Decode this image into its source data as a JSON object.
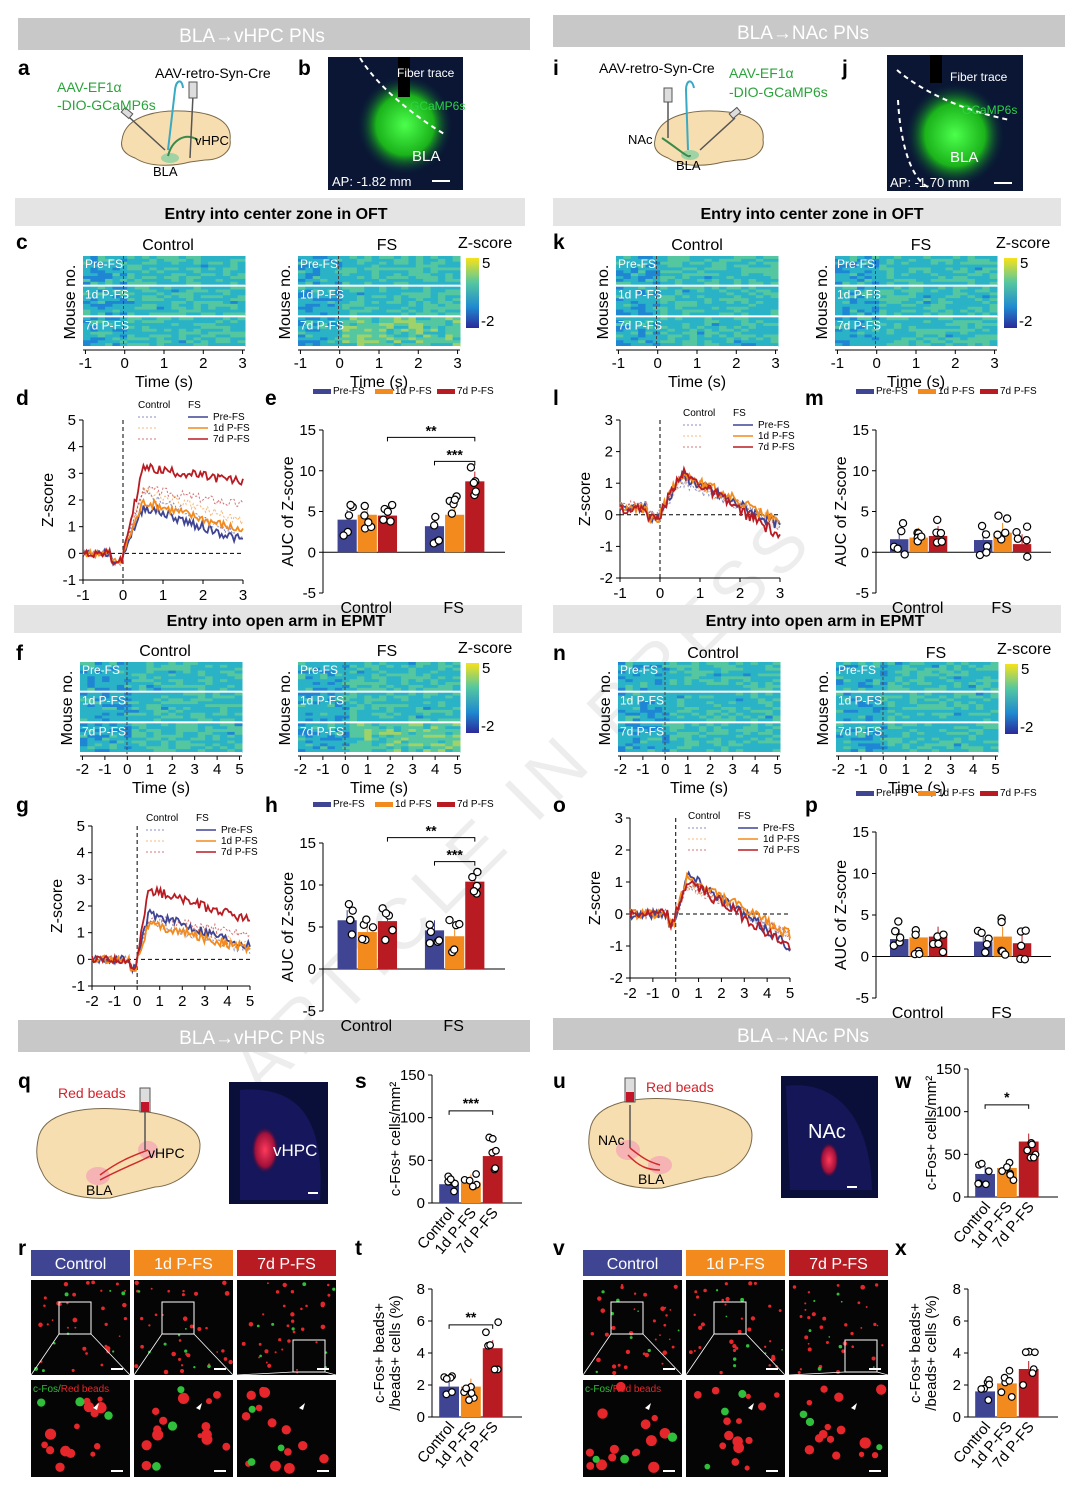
{
  "colors": {
    "pre": "#3f4493",
    "d1": "#f28a1e",
    "d7": "#b81c22",
    "bar_gray": "#cfcfcf",
    "green": "#2fbf3a",
    "red": "#e5262a"
  },
  "sections": {
    "top_left": "BLA→vHPC PNs",
    "top_right": "BLA→NAc PNs",
    "bottom_left": "BLA→vHPC PNs",
    "bottom_right": "BLA→NAc PNs"
  },
  "subsections": {
    "oft_left": "Entry into center zone in OFT",
    "oft_right": "Entry into center zone in OFT",
    "epmt_left": "Entry into open arm in EPMT",
    "epmt_right": "Entry into open arm in EPMT"
  },
  "panel_letters": [
    "a",
    "b",
    "c",
    "d",
    "e",
    "f",
    "g",
    "h",
    "i",
    "j",
    "k",
    "l",
    "m",
    "n",
    "o",
    "p",
    "q",
    "r",
    "s",
    "t",
    "u",
    "v",
    "w",
    "x"
  ],
  "schematic": {
    "a": {
      "virus1": "AAV-EF1α",
      "virus2": "-DIO-GCaMP6s",
      "virus3": "AAV-retro-Syn-Cre",
      "target": "vHPC",
      "source": "BLA"
    },
    "i": {
      "virus1": "AAV-EF1α",
      "virus2": "-DIO-GCaMP6s",
      "virus3": "AAV-retro-Syn-Cre",
      "target": "NAc",
      "source": "BLA"
    }
  },
  "histology": {
    "b": {
      "fiber": "Fiber trace",
      "label1": "GCaMP6s",
      "label2": "BLA",
      "ap": "AP: -1.82 mm"
    },
    "j": {
      "fiber": "Fiber trace",
      "label1": "GCaMP6s",
      "label2": "BLA",
      "ap": "AP: -1.70 mm"
    },
    "q": {
      "label": "vHPC"
    },
    "u": {
      "label": "NAc"
    }
  },
  "heatmap": {
    "ylabel": "Mouse no.",
    "xlabel": "Time (s)",
    "zlabel": "Z-score",
    "zmax": "5",
    "zmin": "-2",
    "cond_control": "Control",
    "cond_fs": "FS",
    "rows": [
      "Pre-FS",
      "1d P-FS",
      "7d P-FS"
    ],
    "ticks_oft": [
      "-1",
      "0",
      "1",
      "2",
      "3"
    ],
    "ticks_epm": [
      "-2",
      "-1",
      "0",
      "1",
      "2",
      "3",
      "4",
      "5"
    ]
  },
  "traces": {
    "ylabel": "Z-score",
    "legend_control": "Control",
    "legend_fs": "FS",
    "legend": [
      "Pre-FS",
      "1d P-FS",
      "7d P-FS"
    ],
    "xticks_oft": [
      "-1",
      "0",
      "1",
      "2",
      "3"
    ],
    "xticks_epm": [
      "-2",
      "-1",
      "0",
      "1",
      "2",
      "3",
      "4",
      "5"
    ],
    "yticks_d": [
      "-1",
      "0",
      "1",
      "2",
      "3",
      "4",
      "5"
    ],
    "yticks_l": [
      "-2",
      "-1",
      "0",
      "1",
      "2",
      "3"
    ]
  },
  "auc": {
    "ylabel": "AUC of Z-score",
    "legend": [
      "Pre-FS",
      "1d P-FS",
      "7d P-FS"
    ],
    "groups": [
      "Control",
      "FS"
    ],
    "yticks": [
      "-5",
      "0",
      "5",
      "10",
      "15"
    ],
    "sig_top": "**",
    "sig_bottom": "***"
  },
  "cfos": {
    "s_ylabel": "c-Fos+ cells/mm²",
    "t_ylabel1": "c-Fos+ beads+",
    "t_ylabel2": "/beads+ cells (%)",
    "s_yticks": [
      "0",
      "50",
      "100",
      "150"
    ],
    "t_yticks": [
      "0",
      "2",
      "4",
      "6",
      "8"
    ],
    "cats": [
      "Control",
      "1d P-FS",
      "7d P-FS"
    ],
    "sig_s": "***",
    "sig_t": "**",
    "sig_w": "*"
  },
  "micro": {
    "headers": [
      "Control",
      "1d P-FS",
      "7d P-FS"
    ],
    "overlay": "c-Fos/Red beads",
    "beads_label": "Red beads",
    "vhpc": "vHPC",
    "nac": "NAc",
    "bla": "BLA"
  },
  "watermark": "ARTICLE IN PRESS",
  "chart_data": [
    {
      "panel": "e",
      "type": "bar",
      "categories": [
        "Control",
        "FS"
      ],
      "series": [
        {
          "name": "Pre-FS",
          "values": [
            4,
            3.2
          ]
        },
        {
          "name": "1d P-FS",
          "values": [
            4.6,
            4.6
          ]
        },
        {
          "name": "7d P-FS",
          "values": [
            4.5,
            8.7
          ]
        }
      ],
      "ylim": [
        -5,
        15
      ]
    },
    {
      "panel": "h",
      "type": "bar",
      "categories": [
        "Control",
        "FS"
      ],
      "series": [
        {
          "name": "Pre-FS",
          "values": [
            5.8,
            4.6
          ]
        },
        {
          "name": "1d P-FS",
          "values": [
            4.4,
            3.9
          ]
        },
        {
          "name": "7d P-FS",
          "values": [
            5.7,
            10.4
          ]
        }
      ],
      "ylim": [
        -5,
        15
      ]
    },
    {
      "panel": "m",
      "type": "bar",
      "categories": [
        "Control",
        "FS"
      ],
      "series": [
        {
          "name": "Pre-FS",
          "values": [
            1.6,
            1.5
          ]
        },
        {
          "name": "1d P-FS",
          "values": [
            1.8,
            2.4
          ]
        },
        {
          "name": "7d P-FS",
          "values": [
            2,
            1
          ]
        }
      ],
      "ylim": [
        -5,
        15
      ]
    },
    {
      "panel": "p",
      "type": "bar",
      "categories": [
        "Control",
        "FS"
      ],
      "series": [
        {
          "name": "Pre-FS",
          "values": [
            2.1,
            1.8
          ]
        },
        {
          "name": "1d P-FS",
          "values": [
            2.3,
            2.4
          ]
        },
        {
          "name": "7d P-FS",
          "values": [
            2.4,
            1.6
          ]
        }
      ],
      "ylim": [
        -5,
        15
      ]
    },
    {
      "panel": "s",
      "type": "bar",
      "categories": [
        "Control",
        "1d P-FS",
        "7d P-FS"
      ],
      "values": [
        22,
        24,
        55
      ],
      "ylim": [
        0,
        150
      ]
    },
    {
      "panel": "t",
      "type": "bar",
      "categories": [
        "Control",
        "1d P-FS",
        "7d P-FS"
      ],
      "values": [
        1.9,
        1.9,
        4.3
      ],
      "ylim": [
        0,
        8
      ]
    },
    {
      "panel": "w",
      "type": "bar",
      "categories": [
        "Control",
        "1d P-FS",
        "7d P-FS"
      ],
      "values": [
        27,
        34,
        65
      ],
      "ylim": [
        0,
        150
      ]
    },
    {
      "panel": "x",
      "type": "bar",
      "categories": [
        "Control",
        "1d P-FS",
        "7d P-FS"
      ],
      "values": [
        1.6,
        2.1,
        3
      ],
      "ylim": [
        0,
        8
      ]
    }
  ]
}
